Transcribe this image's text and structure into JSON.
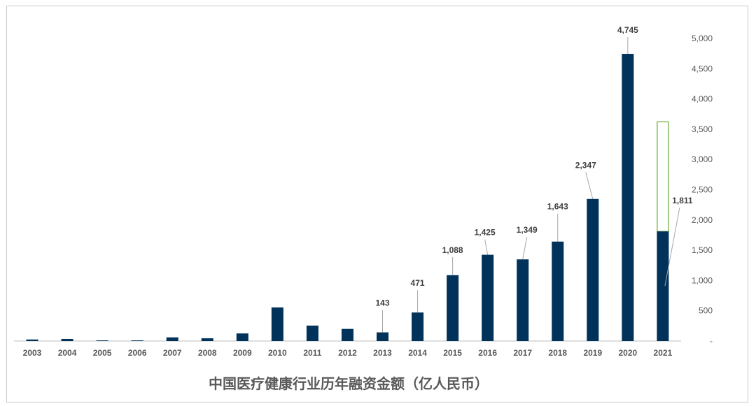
{
  "chart_data": {
    "type": "bar",
    "title": "中国医疗健康行业历年融资金额（亿人民币）",
    "xlabel": "",
    "ylabel": "",
    "categories": [
      "2003",
      "2004",
      "2005",
      "2006",
      "2007",
      "2008",
      "2009",
      "2010",
      "2011",
      "2012",
      "2013",
      "2014",
      "2015",
      "2016",
      "2017",
      "2018",
      "2019",
      "2020",
      "2021"
    ],
    "values": [
      25,
      35,
      10,
      10,
      60,
      45,
      125,
      555,
      255,
      200,
      143,
      471,
      1088,
      1425,
      1349,
      1643,
      2347,
      4745,
      1811
    ],
    "data_labels": {
      "2013": "143",
      "2014": "471",
      "2015": "1,088",
      "2016": "1,425",
      "2017": "1,349",
      "2018": "1,643",
      "2019": "2,347",
      "2020": "4,745",
      "2021": "1,811"
    },
    "projection": {
      "category": "2021",
      "value": 3622
    },
    "y_ticks": [
      0,
      500,
      1000,
      1500,
      2000,
      2500,
      3000,
      3500,
      4000,
      4500,
      5000
    ],
    "y_tick_labels": [
      "-",
      "500",
      "1,000",
      "1,500",
      "2,000",
      "2,500",
      "3,000",
      "3,500",
      "4,000",
      "4,500",
      "5,000"
    ],
    "ylim": [
      0,
      5000
    ],
    "y_axis_side": "right",
    "grid": false,
    "legend": "none",
    "colors": {
      "bar": "#00325a",
      "projection_outline": "#6aaa32",
      "axis": "#bfbfbf",
      "leader": "#a6a6a6"
    }
  }
}
